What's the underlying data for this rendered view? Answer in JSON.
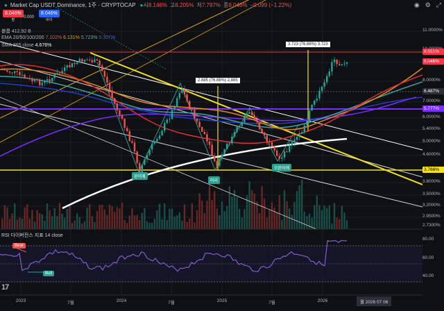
{
  "header": {
    "title": "Market Cap USDT Dominance, 1주 · CRYPTOCAP",
    "ohlc": [
      {
        "k": "시",
        "v": "8.146%"
      },
      {
        "k": "고",
        "v": "8.205%"
      },
      {
        "k": "저",
        "v": "7.797%"
      },
      {
        "k": "종",
        "v": "8.046%"
      },
      {
        "k": "",
        "v": "−0.099 (−1.22%)"
      }
    ],
    "sell_price": "8.046%",
    "sell_label": "팔",
    "spread": "0.000",
    "buy_price": "8.046%",
    "buy_label": "바이",
    "volume_line": "볼륨 412.92 B",
    "ema_label": "EMA 20/50/100/200",
    "ema_values": [
      "7.102%",
      "6.131%",
      "5.723%",
      "5.307%"
    ],
    "sma_label": "SMA 365 close",
    "sma_value": "4.676%"
  },
  "toolbar_icons": [
    "camera-icon",
    "settings-icon",
    "fullscreen-icon"
  ],
  "right_axis": {
    "ticks": [
      "11.0000%",
      "10.0000%",
      "9.0000%",
      "8.0000%",
      "7.0000%",
      "6.0000%",
      "5.4000%",
      "5.0000%",
      "4.6000%",
      "4.2000%",
      "3.8000%",
      "3.5000%",
      "3.2000%",
      "2.9500%",
      "2.7300%"
    ],
    "price_labels": [
      {
        "text": "8.551%",
        "color": "#f23645"
      },
      {
        "text": "8.046%",
        "color": "#f23645"
      },
      {
        "text": "6.487%",
        "color": "#2a2e39"
      },
      {
        "text": "5.777%",
        "color": "#7b2cff"
      },
      {
        "text": "3.766%",
        "color": "#f5e21b"
      }
    ],
    "rsi_ticks": [
      "80.00",
      "60.00",
      "40.00"
    ]
  },
  "x_axis": [
    "2023",
    "7월",
    "2024",
    "7월",
    "2025",
    "7월",
    "2026"
  ],
  "crosshair_date": "월 2026 07 06",
  "annotations": {
    "measure1": "2.885 (76.88%) 2,885",
    "measure2": "3.723 (76.88%) 3,723",
    "label_left": "왼어깨",
    "label_head": "머리",
    "label_right": "오른어깨"
  },
  "rsi": {
    "label": "RSI 다이버전스 지표 14 close",
    "bear": "Bear",
    "bull": "Bull"
  },
  "colors": {
    "up": "#26a69a",
    "down": "#ef5350",
    "yellow": "#f5e21b",
    "purple": "#7b2cff"
  }
}
